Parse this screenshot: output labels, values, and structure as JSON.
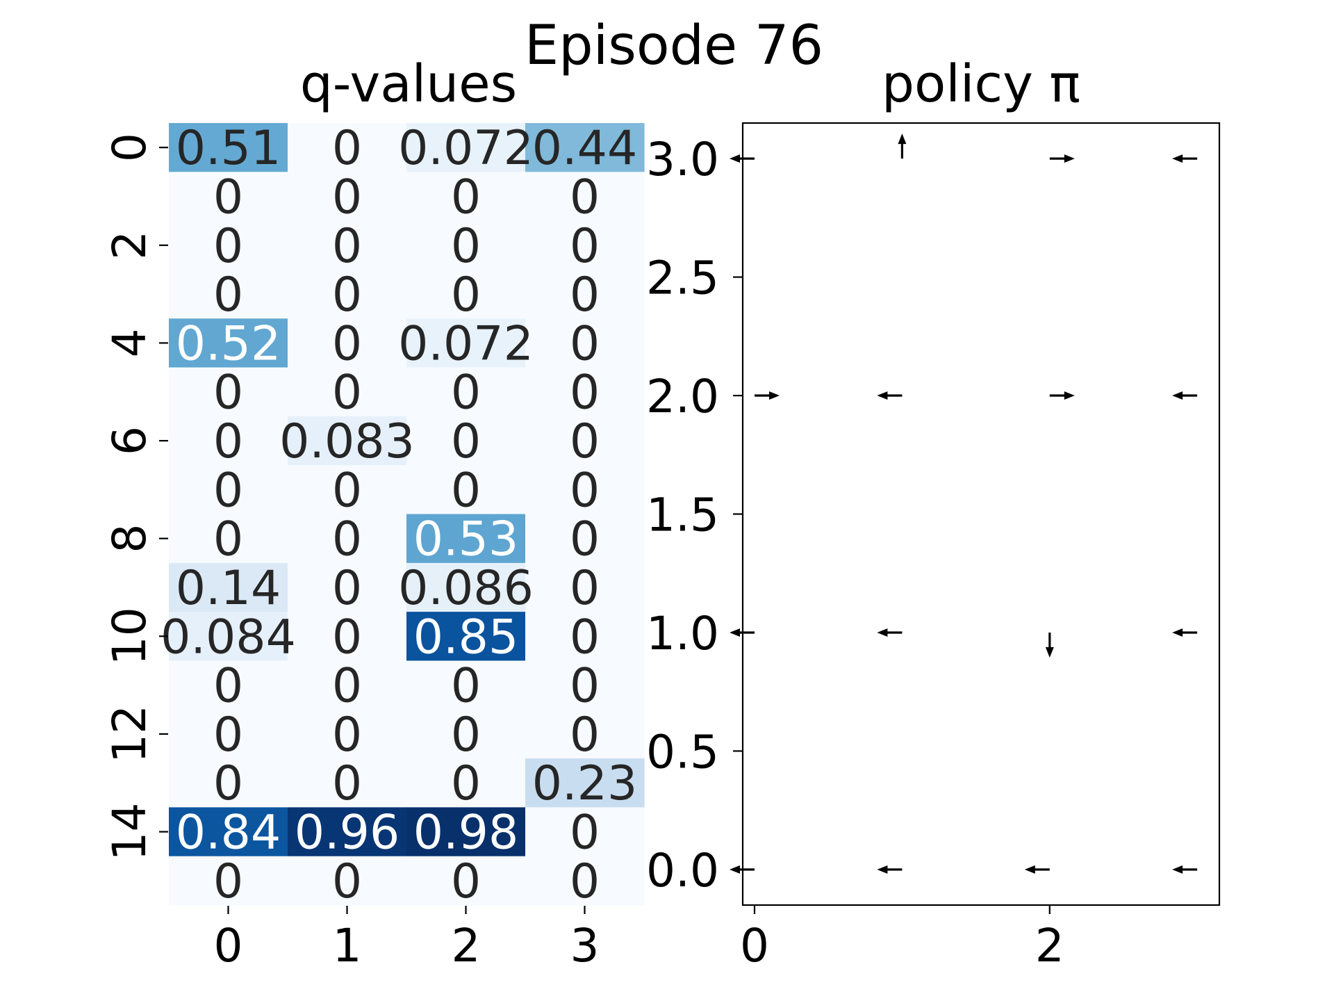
{
  "figure": {
    "title": "Episode 76"
  },
  "chart_data": [
    {
      "type": "heatmap",
      "title": "q-values",
      "xlabel": "",
      "ylabel": "",
      "colormap": "Blues",
      "vmin": 0,
      "vmax": 0.98,
      "x_ticks": [
        "0",
        "1",
        "2",
        "3"
      ],
      "y_ticks": [
        "0",
        "2",
        "4",
        "6",
        "8",
        "10",
        "12",
        "14"
      ],
      "rows": [
        {
          "index": 0,
          "values": [
            0.51,
            0,
            0.072,
            0.44
          ],
          "labels": [
            "0.51",
            "0",
            "0.072",
            "0.44"
          ]
        },
        {
          "index": 1,
          "values": [
            0,
            0,
            0,
            0
          ],
          "labels": [
            "0",
            "0",
            "0",
            "0"
          ]
        },
        {
          "index": 2,
          "values": [
            0,
            0,
            0,
            0
          ],
          "labels": [
            "0",
            "0",
            "0",
            "0"
          ]
        },
        {
          "index": 3,
          "values": [
            0,
            0,
            0,
            0
          ],
          "labels": [
            "0",
            "0",
            "0",
            "0"
          ]
        },
        {
          "index": 4,
          "values": [
            0.52,
            0,
            0.072,
            0
          ],
          "labels": [
            "0.52",
            "0",
            "0.072",
            "0"
          ]
        },
        {
          "index": 5,
          "values": [
            0,
            0,
            0,
            0
          ],
          "labels": [
            "0",
            "0",
            "0",
            "0"
          ]
        },
        {
          "index": 6,
          "values": [
            0,
            0.083,
            0,
            0
          ],
          "labels": [
            "0",
            "0.083",
            "0",
            "0"
          ]
        },
        {
          "index": 7,
          "values": [
            0,
            0,
            0,
            0
          ],
          "labels": [
            "0",
            "0",
            "0",
            "0"
          ]
        },
        {
          "index": 8,
          "values": [
            0,
            0,
            0.53,
            0
          ],
          "labels": [
            "0",
            "0",
            "0.53",
            "0"
          ]
        },
        {
          "index": 9,
          "values": [
            0.14,
            0,
            0.086,
            0
          ],
          "labels": [
            "0.14",
            "0",
            "0.086",
            "0"
          ]
        },
        {
          "index": 10,
          "values": [
            0.084,
            0,
            0.85,
            0
          ],
          "labels": [
            "0.084",
            "0",
            "0.85",
            "0"
          ]
        },
        {
          "index": 11,
          "values": [
            0,
            0,
            0,
            0
          ],
          "labels": [
            "0",
            "0",
            "0",
            "0"
          ]
        },
        {
          "index": 12,
          "values": [
            0,
            0,
            0,
            0
          ],
          "labels": [
            "0",
            "0",
            "0",
            "0"
          ]
        },
        {
          "index": 13,
          "values": [
            0,
            0,
            0,
            0.23
          ],
          "labels": [
            "0",
            "0",
            "0",
            "0.23"
          ]
        },
        {
          "index": 14,
          "values": [
            0.84,
            0.96,
            0.98,
            0
          ],
          "labels": [
            "0.84",
            "0.96",
            "0.98",
            "0"
          ]
        },
        {
          "index": 15,
          "values": [
            0,
            0,
            0,
            0
          ],
          "labels": [
            "0",
            "0",
            "0",
            "0"
          ]
        }
      ]
    },
    {
      "type": "quiver",
      "title": "policy π",
      "xlabel": "",
      "ylabel": "",
      "xlim": [
        -0.08,
        3.15
      ],
      "ylim": [
        -0.15,
        3.15
      ],
      "x_ticks": [
        "0",
        "2"
      ],
      "x_tick_values": [
        0,
        2
      ],
      "y_ticks": [
        "0.0",
        "0.5",
        "1.0",
        "1.5",
        "2.0",
        "2.5",
        "3.0"
      ],
      "y_tick_values": [
        0.0,
        0.5,
        1.0,
        1.5,
        2.0,
        2.5,
        3.0
      ],
      "arrows": [
        {
          "x": 0,
          "y": 3,
          "dir": "left"
        },
        {
          "x": 1,
          "y": 3,
          "dir": "up"
        },
        {
          "x": 2,
          "y": 3,
          "dir": "right"
        },
        {
          "x": 3,
          "y": 3,
          "dir": "left"
        },
        {
          "x": 0,
          "y": 2,
          "dir": "right"
        },
        {
          "x": 1,
          "y": 2,
          "dir": "left"
        },
        {
          "x": 2,
          "y": 2,
          "dir": "right"
        },
        {
          "x": 3,
          "y": 2,
          "dir": "left"
        },
        {
          "x": 0,
          "y": 1,
          "dir": "left"
        },
        {
          "x": 1,
          "y": 1,
          "dir": "left"
        },
        {
          "x": 2,
          "y": 1,
          "dir": "down"
        },
        {
          "x": 3,
          "y": 1,
          "dir": "left"
        },
        {
          "x": 0,
          "y": 0,
          "dir": "left"
        },
        {
          "x": 1,
          "y": 0,
          "dir": "left"
        },
        {
          "x": 2,
          "y": 0,
          "dir": "left"
        },
        {
          "x": 3,
          "y": 0,
          "dir": "left"
        }
      ]
    }
  ]
}
